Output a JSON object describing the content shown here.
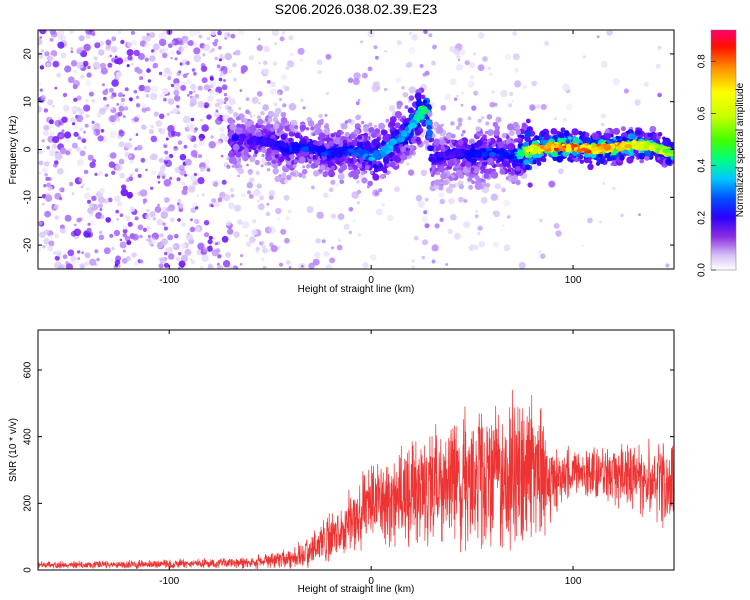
{
  "chart_data": [
    {
      "type": "heatmap",
      "title": "S206.2026.038.02.39.E23",
      "xlabel": "Height of straight line (km)",
      "ylabel": "Frequency (Hz)",
      "xlim": [
        -165,
        150
      ],
      "ylim": [
        -25,
        25
      ],
      "xticks": [
        -100,
        0,
        100
      ],
      "yticks": [
        -20,
        -10,
        0,
        10,
        20
      ],
      "colorbar": {
        "label": "Normalized spectral amplitude",
        "range": [
          0.0,
          0.92
        ],
        "ticks": [
          0.0,
          0.2,
          0.4,
          0.6,
          0.8
        ],
        "colors": [
          "#ffffff",
          "#d6c2f7",
          "#7b16ff",
          "#0000ff",
          "#00c8ff",
          "#00ff66",
          "#aaff00",
          "#ffff00",
          "#ff8c00",
          "#ff0000",
          "#ff0066"
        ]
      },
      "ridge": {
        "x": [
          -60,
          -50,
          -40,
          -30,
          -20,
          -10,
          0,
          5,
          10,
          15,
          20,
          25,
          28,
          30,
          40,
          50,
          60,
          70,
          80,
          90,
          100,
          110,
          120,
          130,
          140,
          150
        ],
        "y": [
          2,
          1.5,
          0,
          0.5,
          -1,
          0,
          -1.5,
          -1,
          1,
          2.5,
          5,
          8,
          8.5,
          -2,
          -1,
          -1,
          -0.5,
          -1.5,
          0,
          0.5,
          0.5,
          0,
          0.5,
          1,
          0.5,
          -1
        ],
        "amplitude": [
          0.25,
          0.25,
          0.3,
          0.3,
          0.3,
          0.3,
          0.35,
          0.4,
          0.4,
          0.35,
          0.4,
          0.5,
          0.45,
          0.25,
          0.25,
          0.3,
          0.3,
          0.3,
          0.7,
          0.8,
          0.8,
          0.75,
          0.75,
          0.7,
          0.65,
          0.55
        ]
      }
    },
    {
      "type": "line",
      "xlabel": "Height of straight line (km)",
      "ylabel": "SNR (10 * v/v)",
      "xlim": [
        -165,
        150
      ],
      "ylim": [
        0,
        720
      ],
      "xticks": [
        -100,
        0,
        100
      ],
      "yticks": [
        0,
        200,
        400,
        600
      ],
      "series": [
        {
          "name": "SNR",
          "color": "#ee3333",
          "envelope": {
            "x": [
              -165,
              -100,
              -60,
              -40,
              -30,
              -20,
              -10,
              0,
              20,
              40,
              60,
              75,
              85,
              88,
              100,
              120,
              140,
              150
            ],
            "mean": [
              15,
              18,
              22,
              35,
              60,
              100,
              150,
              190,
              230,
              260,
              280,
              290,
              280,
              260,
              290,
              290,
              270,
              260
            ],
            "spread": [
              12,
              15,
              20,
              35,
              60,
              90,
              120,
              140,
              180,
              230,
              270,
              300,
              250,
              130,
              90,
              110,
              140,
              160
            ]
          }
        }
      ]
    }
  ]
}
